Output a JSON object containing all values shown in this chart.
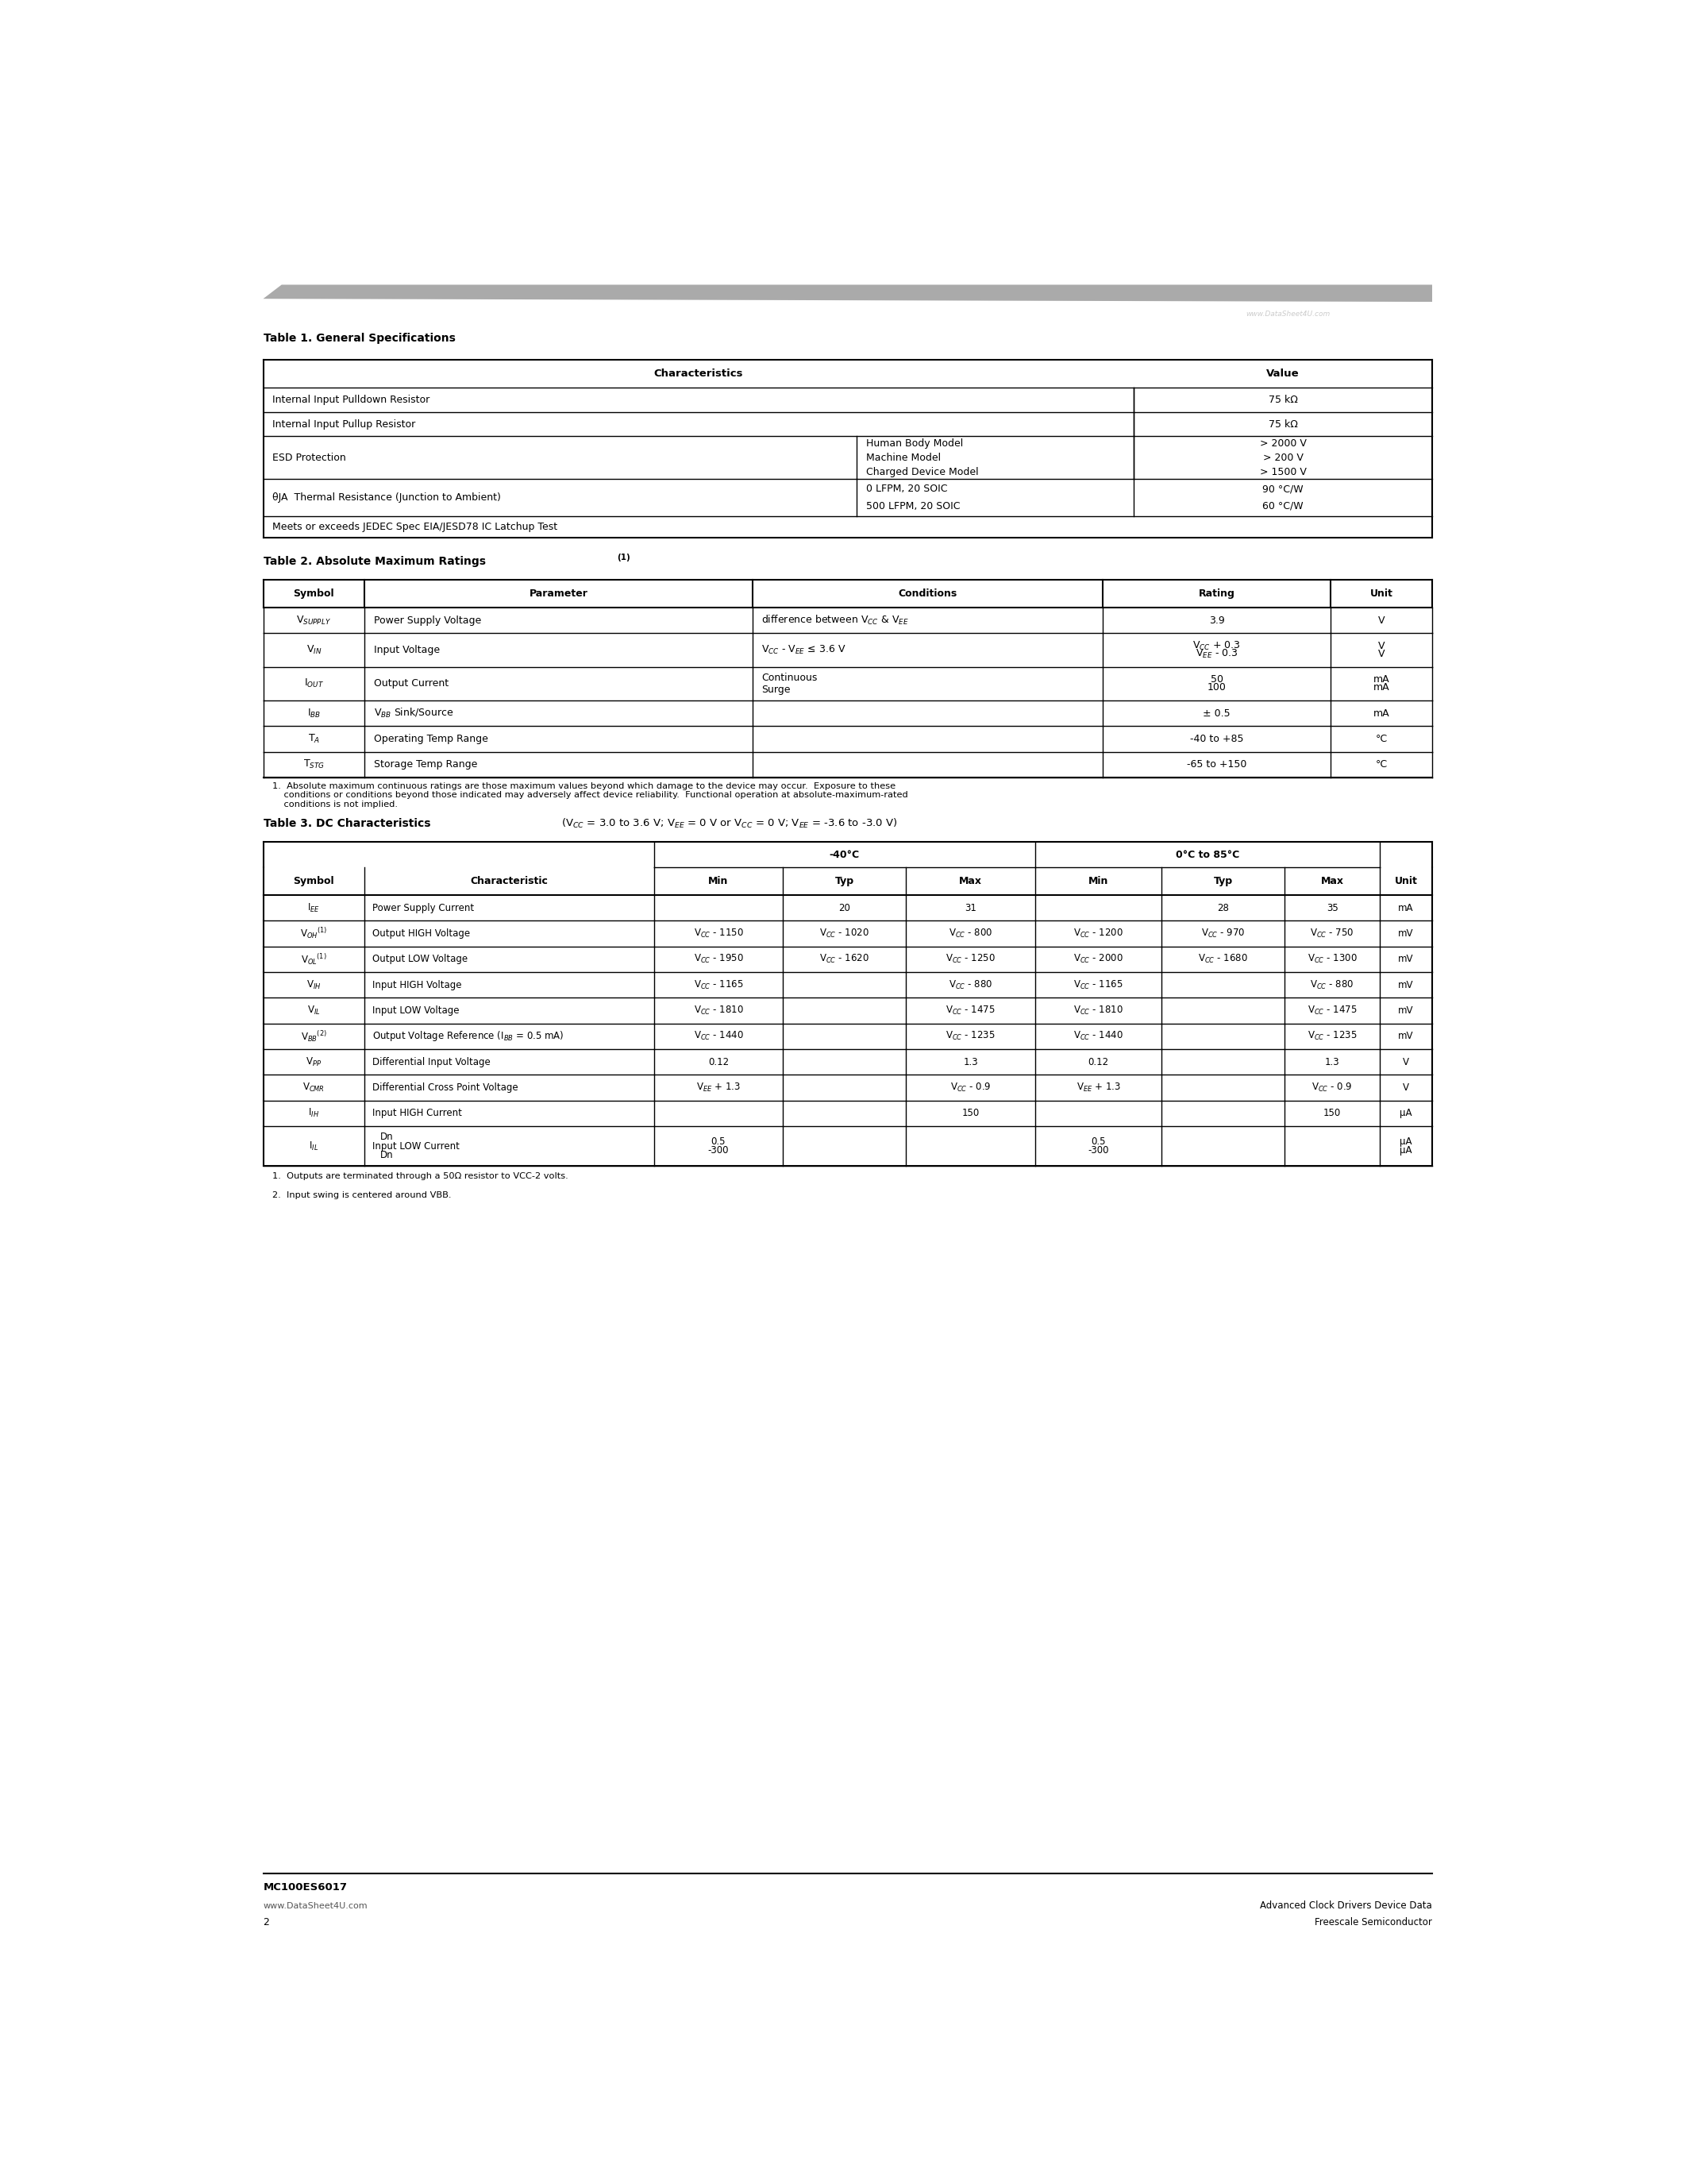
{
  "page_title": "MC100ES6017",
  "page_number": "2",
  "website": "www.DataSheet4U.com",
  "decorative_bar_color": "#aaaaaa",
  "table1_title": "Table 1. General Specifications",
  "table2_title": "Table 2. Absolute Maximum Ratings",
  "table2_title_super": "(1)",
  "table2_note": "1.  Absolute maximum continuous ratings are those maximum values beyond which damage to the device may occur.  Exposure to these\n    conditions or conditions beyond those indicated may adversely affect device reliability.  Functional operation at absolute-maximum-rated\n    conditions is not implied.",
  "table3_title": "Table 3. DC Characteristics",
  "table3_note1": "1.  Outputs are terminated through a 50Ω resistor to VCC-2 volts.",
  "table3_note2": "2.  Input swing is centered around VBB."
}
